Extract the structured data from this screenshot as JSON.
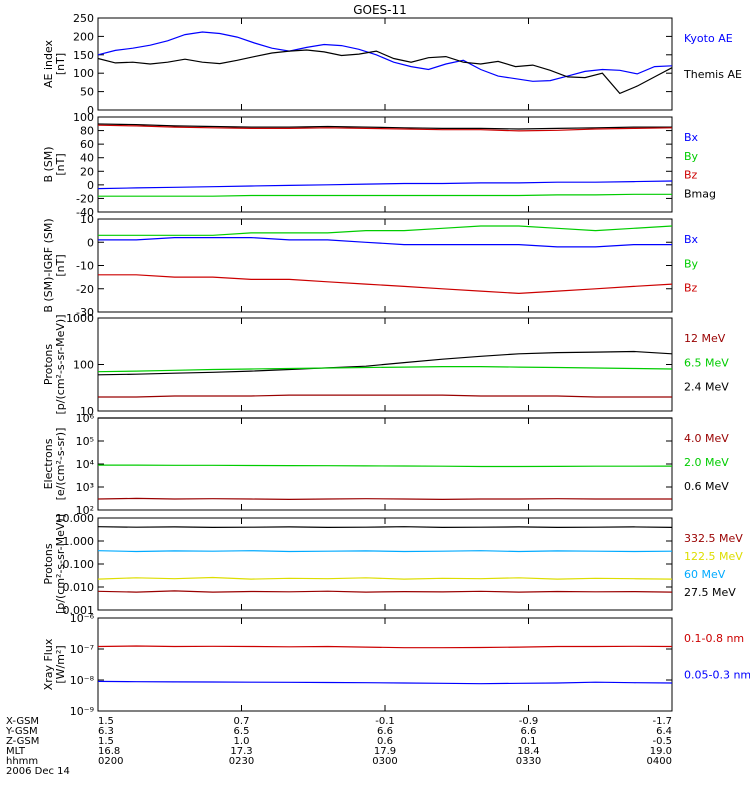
{
  "title": "GOES-11",
  "colors": {
    "black": "#000000",
    "blue": "#0000ff",
    "red": "#cc0000",
    "darkred": "#990000",
    "green": "#00cc00",
    "cyan": "#00aaff",
    "yellow": "#dddd00"
  },
  "chart_data": [
    {
      "type": "line",
      "ylabel": [
        "AE index",
        "[nT]"
      ],
      "ylim": [
        0,
        250
      ],
      "yticks": [
        "0",
        "50",
        "100",
        "150",
        "200",
        "250"
      ],
      "legend": [
        {
          "label": "Kyoto AE",
          "color": "blue"
        },
        {
          "label": "Themis AE",
          "color": "black"
        }
      ],
      "series": [
        {
          "name": "Kyoto AE",
          "color": "blue",
          "values": [
            150,
            162,
            168,
            176,
            188,
            205,
            212,
            208,
            198,
            182,
            168,
            160,
            170,
            178,
            175,
            165,
            150,
            130,
            118,
            110,
            125,
            135,
            110,
            92,
            85,
            78,
            80,
            92,
            105,
            110,
            108,
            98,
            118,
            120
          ]
        },
        {
          "name": "Themis AE",
          "color": "black",
          "values": [
            140,
            128,
            130,
            125,
            130,
            138,
            130,
            126,
            135,
            145,
            155,
            160,
            163,
            158,
            148,
            152,
            160,
            140,
            130,
            142,
            145,
            130,
            125,
            132,
            118,
            122,
            108,
            90,
            88,
            100,
            45,
            65,
            90,
            115
          ]
        }
      ]
    },
    {
      "type": "line",
      "ylabel": [
        "B (SM)",
        "[nT]"
      ],
      "ylim": [
        -45,
        105
      ],
      "yticks": [
        "-40",
        "-20",
        "0",
        "20",
        "40",
        "60",
        "80",
        "100"
      ],
      "legend": [
        {
          "label": "Bx",
          "color": "blue"
        },
        {
          "label": "By",
          "color": "green"
        },
        {
          "label": "Bz",
          "color": "red"
        },
        {
          "label": "Bmag",
          "color": "black"
        }
      ],
      "series": [
        {
          "name": "Bmag",
          "color": "black",
          "values": [
            94,
            93,
            91,
            90,
            89,
            89,
            90,
            89,
            88,
            87,
            87,
            86,
            87,
            88,
            89,
            89
          ]
        },
        {
          "name": "Bz",
          "color": "red",
          "values": [
            92,
            91,
            89,
            88,
            87,
            87,
            88,
            87,
            86,
            85,
            85,
            83,
            84,
            86,
            87,
            88
          ]
        },
        {
          "name": "Bx",
          "color": "blue",
          "values": [
            -8,
            -7,
            -6,
            -5,
            -4,
            -3,
            -2,
            -1,
            0,
            0,
            1,
            1,
            2,
            2,
            3,
            4
          ]
        },
        {
          "name": "By",
          "color": "green",
          "values": [
            -20,
            -20,
            -20,
            -20,
            -19,
            -19,
            -19,
            -19,
            -19,
            -19,
            -19,
            -19,
            -18,
            -18,
            -17,
            -17
          ]
        }
      ]
    },
    {
      "type": "line",
      "ylabel": [
        "B (SM)-IGRF (SM)",
        "[nT]"
      ],
      "ylim": [
        -30,
        10
      ],
      "yticks": [
        "-30",
        "-20",
        "-10",
        "0",
        "10"
      ],
      "legend": [
        {
          "label": "Bx",
          "color": "blue"
        },
        {
          "label": "By",
          "color": "green"
        },
        {
          "label": "Bz",
          "color": "red"
        }
      ],
      "series": [
        {
          "name": "Bx",
          "color": "blue",
          "values": [
            1,
            1,
            2,
            2,
            2,
            1,
            1,
            0,
            -1,
            -1,
            -1,
            -1,
            -2,
            -2,
            -1,
            -1
          ]
        },
        {
          "name": "By",
          "color": "green",
          "values": [
            3,
            3,
            3,
            3,
            4,
            4,
            4,
            5,
            5,
            6,
            7,
            7,
            6,
            5,
            6,
            7
          ]
        },
        {
          "name": "Bz",
          "color": "red",
          "values": [
            -14,
            -14,
            -15,
            -15,
            -16,
            -16,
            -17,
            -18,
            -19,
            -20,
            -21,
            -22,
            -21,
            -20,
            -19,
            -18
          ]
        }
      ]
    },
    {
      "type": "line",
      "yscale": "log",
      "ylabel": [
        "Protons",
        "[p/(cm²-s-sr-MeV)]"
      ],
      "ylim": [
        10,
        1000
      ],
      "yticks": [
        "10",
        "100",
        "1000"
      ],
      "legend": [
        {
          "label": "12 MeV",
          "color": "darkred"
        },
        {
          "label": "6.5 MeV",
          "color": "green"
        },
        {
          "label": "2.4 MeV",
          "color": "black"
        }
      ],
      "series": [
        {
          "name": "2.4 MeV",
          "color": "black",
          "values": [
            60,
            62,
            65,
            68,
            72,
            78,
            85,
            92,
            110,
            130,
            150,
            170,
            180,
            185,
            190,
            170
          ]
        },
        {
          "name": "6.5 MeV",
          "color": "green",
          "values": [
            70,
            72,
            75,
            78,
            80,
            82,
            84,
            86,
            88,
            90,
            90,
            88,
            86,
            84,
            82,
            80
          ]
        },
        {
          "name": "12 MeV",
          "color": "darkred",
          "values": [
            20,
            20,
            21,
            21,
            21,
            22,
            22,
            22,
            22,
            22,
            21,
            21,
            21,
            20,
            20,
            20
          ]
        }
      ]
    },
    {
      "type": "line",
      "yscale": "log",
      "ylabel": [
        "Electrons",
        "[e/(cm²-s-sr)]"
      ],
      "ylim": [
        100,
        1000000
      ],
      "yticks": [
        "10²",
        "10³",
        "10⁴",
        "10⁵",
        "10⁶"
      ],
      "legend": [
        {
          "label": "4.0 MeV",
          "color": "darkred"
        },
        {
          "label": "2.0 MeV",
          "color": "green"
        },
        {
          "label": "0.6 MeV",
          "color": "black"
        }
      ],
      "series": [
        {
          "name": "0.6 MeV",
          "color": "black",
          "values": [
            1000000,
            1000000,
            1000000,
            1000000,
            1000000,
            1000000,
            1000000,
            1000000,
            1000000,
            1000000,
            1000000,
            1000000,
            1000000,
            1000000,
            1000000,
            1000000
          ]
        },
        {
          "name": "2.0 MeV",
          "color": "green",
          "values": [
            9000,
            9000,
            8800,
            8800,
            8600,
            8500,
            8400,
            8300,
            8200,
            8000,
            7800,
            7800,
            7900,
            8000,
            8000,
            8100
          ]
        },
        {
          "name": "4.0 MeV",
          "color": "darkred",
          "values": [
            300,
            320,
            300,
            310,
            300,
            290,
            300,
            310,
            300,
            290,
            300,
            300,
            310,
            300,
            300,
            300
          ]
        }
      ]
    },
    {
      "type": "line",
      "yscale": "log",
      "ylabel": [
        "Protons",
        "[p/(cm²-s-sr-MeV)]"
      ],
      "ylim": [
        0.001,
        10
      ],
      "yticks": [
        "0.001",
        "0.010",
        "0.100",
        "1.000",
        "10.000"
      ],
      "legend": [
        {
          "label": "332.5 MeV",
          "color": "darkred"
        },
        {
          "label": "122.5 MeV",
          "color": "yellow"
        },
        {
          "label": "60 MeV",
          "color": "cyan"
        },
        {
          "label": "27.5 MeV",
          "color": "black"
        }
      ],
      "series": [
        {
          "name": "27.5 MeV",
          "color": "black",
          "values": [
            4.2,
            4.0,
            4.1,
            3.9,
            4.0,
            4.1,
            3.9,
            4.0,
            4.2,
            3.9,
            4.0,
            4.1,
            3.9,
            4.0,
            4.1,
            3.9
          ]
        },
        {
          "name": "60 MeV",
          "color": "cyan",
          "values": [
            0.38,
            0.35,
            0.37,
            0.36,
            0.38,
            0.35,
            0.36,
            0.37,
            0.35,
            0.36,
            0.38,
            0.35,
            0.37,
            0.36,
            0.35,
            0.36
          ]
        },
        {
          "name": "122.5 MeV",
          "color": "yellow",
          "values": [
            0.022,
            0.025,
            0.023,
            0.026,
            0.022,
            0.024,
            0.023,
            0.025,
            0.022,
            0.024,
            0.023,
            0.025,
            0.022,
            0.024,
            0.023,
            0.022
          ]
        },
        {
          "name": "332.5 MeV",
          "color": "darkred",
          "values": [
            0.0065,
            0.006,
            0.0068,
            0.006,
            0.0064,
            0.0062,
            0.0066,
            0.006,
            0.0063,
            0.0061,
            0.0065,
            0.006,
            0.0064,
            0.0062,
            0.0063,
            0.006
          ]
        }
      ]
    },
    {
      "type": "line",
      "yscale": "log",
      "ylabel": [
        "Xray Flux",
        "[W/m²]"
      ],
      "ylim": [
        1e-09,
        1e-06
      ],
      "yticks": [
        "10⁻⁹",
        "10⁻⁸",
        "10⁻⁷",
        "10⁻⁶"
      ],
      "legend": [
        {
          "label": "0.1-0.8 nm",
          "color": "red"
        },
        {
          "label": "0.05-0.3 nm",
          "color": "blue"
        }
      ],
      "series": [
        {
          "name": "0.1-0.8 nm",
          "color": "red",
          "values": [
            1.2e-07,
            1.25e-07,
            1.2e-07,
            1.22e-07,
            1.2e-07,
            1.18e-07,
            1.2e-07,
            1.15e-07,
            1.1e-07,
            1.1e-07,
            1.12e-07,
            1.15e-07,
            1.2e-07,
            1.2e-07,
            1.22e-07,
            1.2e-07
          ]
        },
        {
          "name": "0.05-0.3 nm",
          "color": "blue",
          "values": [
            9e-09,
            8.8e-09,
            8.7e-09,
            8.6e-09,
            8.5e-09,
            8.4e-09,
            8.3e-09,
            8.2e-09,
            8e-09,
            7.8e-09,
            7.6e-09,
            7.8e-09,
            8e-09,
            8.5e-09,
            8.2e-09,
            8e-09
          ]
        }
      ]
    }
  ],
  "axis_table": {
    "rows": [
      {
        "label": "X-GSM",
        "values": [
          "1.5",
          "0.7",
          "-0.1",
          "-0.9",
          "-1.7"
        ]
      },
      {
        "label": "Y-GSM",
        "values": [
          "6.3",
          "6.5",
          "6.6",
          "6.6",
          "6.4"
        ]
      },
      {
        "label": "Z-GSM",
        "values": [
          "1.5",
          "1.0",
          "0.6",
          "0.1",
          "-0.5"
        ]
      },
      {
        "label": "MLT",
        "values": [
          "16.8",
          "17.3",
          "17.9",
          "18.4",
          "19.0"
        ]
      },
      {
        "label": "hhmm",
        "values": [
          "0200",
          "0230",
          "0300",
          "0330",
          "0400"
        ]
      }
    ],
    "date": "2006 Dec 14"
  }
}
